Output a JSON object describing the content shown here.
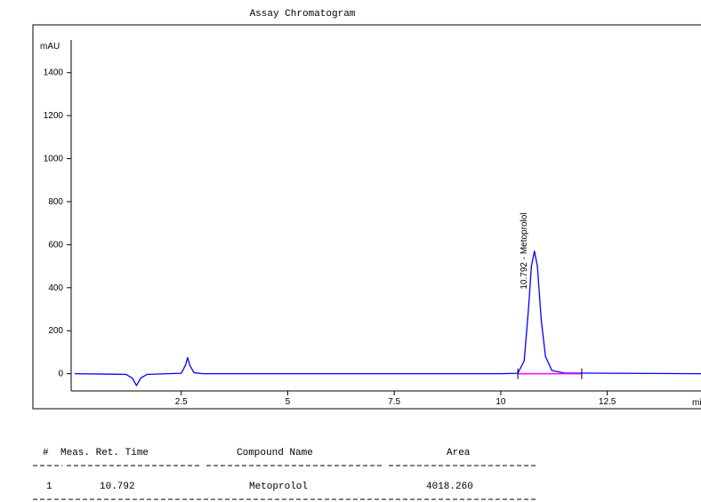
{
  "chart_data": {
    "type": "line",
    "title": "Assay Chromatogram",
    "y_label": "mAU",
    "x_label": "min",
    "x": [
      0,
      1.2,
      1.35,
      1.45,
      1.55,
      1.7,
      2.5,
      2.6,
      2.65,
      2.7,
      2.8,
      3.0,
      10.0,
      10.4,
      10.55,
      10.65,
      10.72,
      10.79,
      10.86,
      10.95,
      11.05,
      11.2,
      11.5,
      14.7
    ],
    "series": [
      {
        "color": "#0000ff",
        "values": [
          0,
          -3,
          -20,
          -55,
          -20,
          -3,
          2,
          40,
          75,
          40,
          5,
          0,
          0,
          2,
          60,
          300,
          500,
          570,
          500,
          250,
          80,
          15,
          3,
          0
        ]
      }
    ],
    "xlim": [
      0,
      14.7
    ],
    "ylim": [
      -80,
      1560
    ],
    "xticks": [
      2.5,
      5,
      7.5,
      10,
      12.5
    ],
    "yticks": [
      0,
      200,
      400,
      600,
      800,
      1000,
      1200,
      1400
    ],
    "integration": {
      "start": 10.4,
      "end": 11.9,
      "color": "#ff00ff"
    },
    "annotations": [
      {
        "x": 10.792,
        "text": "10.792 - Metoprolol"
      }
    ]
  },
  "table": {
    "columns": [
      "#",
      "Meas. Ret. Time",
      "Compound Name",
      "Area"
    ],
    "rows": [
      [
        "1",
        "10.792",
        "Metoprolol",
        "4018.260"
      ]
    ]
  }
}
